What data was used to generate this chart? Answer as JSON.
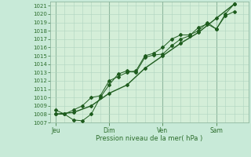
{
  "xlabel": "Pression niveau de la mer( hPa )",
  "bg_color": "#c8ead8",
  "plot_bg_color": "#d4eed8",
  "grid_color": "#b0d4c0",
  "grid_color_major": "#90b8a0",
  "line_color": "#1e5c1e",
  "marker_color": "#1e5c1e",
  "axis_color": "#2d6e2d",
  "text_color": "#2d6e2d",
  "ylim": [
    1007,
    1021.5
  ],
  "yticks": [
    1007,
    1008,
    1009,
    1010,
    1011,
    1012,
    1013,
    1014,
    1015,
    1016,
    1017,
    1018,
    1019,
    1020,
    1021
  ],
  "xtick_labels": [
    "Jeu",
    "Dim",
    "Ven",
    "Sam"
  ],
  "xtick_positions": [
    0.0,
    3.0,
    6.0,
    9.0
  ],
  "xlim": [
    -0.3,
    10.8
  ],
  "series1_x": [
    0,
    0.5,
    1.0,
    1.5,
    2.0,
    2.5,
    3.0,
    3.5,
    4.0,
    4.5,
    5.0,
    5.5,
    6.0,
    6.5,
    7.0,
    7.5,
    8.0,
    8.5,
    9.0,
    9.5,
    10.0
  ],
  "series1_y": [
    1008.5,
    1008.0,
    1007.3,
    1007.2,
    1008.0,
    1010.0,
    1011.5,
    1012.8,
    1013.2,
    1013.0,
    1014.8,
    1015.1,
    1015.2,
    1016.2,
    1017.0,
    1017.4,
    1018.4,
    1018.8,
    1018.2,
    1020.0,
    1021.2
  ],
  "series2_x": [
    0,
    0.5,
    1.0,
    1.5,
    2.0,
    2.5,
    3.0,
    3.5,
    4.0,
    4.5,
    5.0,
    5.5,
    6.0,
    6.5,
    7.0,
    7.5,
    8.0,
    8.5,
    9.0,
    9.5,
    10.0
  ],
  "series2_y": [
    1008.0,
    1008.0,
    1008.5,
    1009.0,
    1010.0,
    1010.2,
    1012.0,
    1012.5,
    1013.0,
    1013.2,
    1015.0,
    1015.3,
    1016.0,
    1017.0,
    1017.5,
    1017.5,
    1018.0,
    1019.0,
    1018.2,
    1019.8,
    1020.3
  ],
  "series3_x": [
    0,
    1.0,
    2.0,
    3.0,
    4.0,
    5.0,
    6.0,
    7.0,
    8.0,
    9.0,
    10.0
  ],
  "series3_y": [
    1008.0,
    1008.2,
    1009.0,
    1010.5,
    1011.5,
    1013.5,
    1015.0,
    1016.5,
    1017.8,
    1019.5,
    1021.2
  ]
}
